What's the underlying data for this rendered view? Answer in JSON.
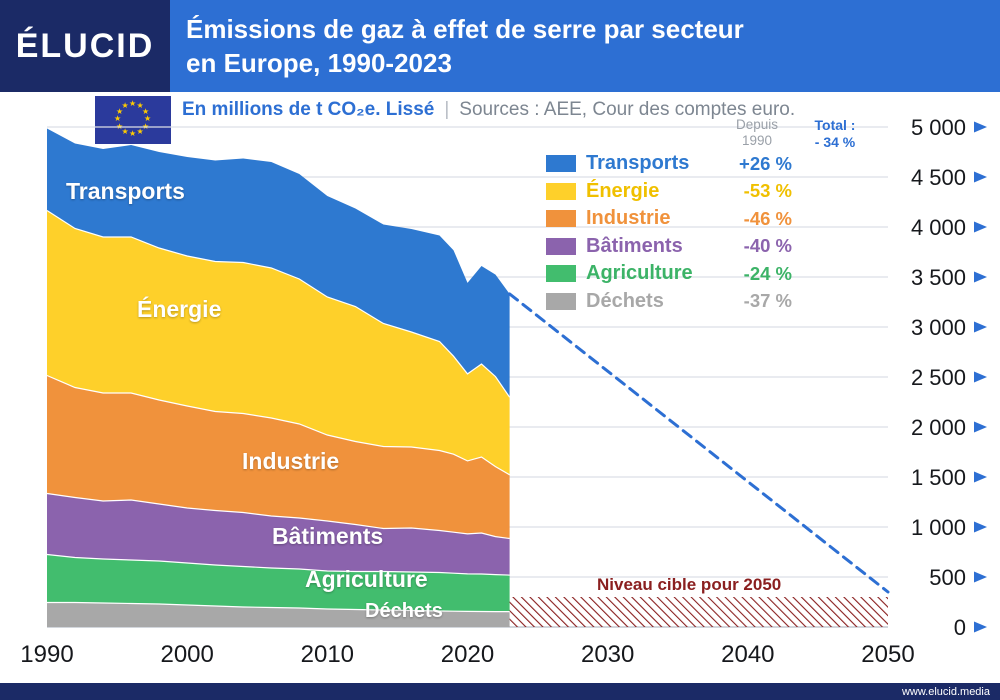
{
  "header": {
    "logo": "ÉLUCID",
    "title_line1": "Émissions de gaz à effet de serre par secteur",
    "title_line2": "en Europe, 1990-2023"
  },
  "subtitle": {
    "unit": "En millions de t CO₂e. Lissé",
    "separator": "|",
    "sources": "Sources : AEE, Cour des comptes euro."
  },
  "legend": {
    "since_line1": "Depuis",
    "since_line2": "1990",
    "total_line1": "Total :",
    "total_line2": "- 34 %"
  },
  "footer": {
    "url": "www.elucid.media"
  },
  "colors": {
    "header_navy": "#1b2a66",
    "header_blue": "#2d6fd3",
    "accent_blue": "#2d6fd3",
    "grid": "#dcdfe6",
    "axis_zero_line": "#b8bdc7",
    "axis_text": "#16181c",
    "target_red": "#8a1f1f",
    "flag_blue": "#2b3a9c",
    "flag_star_yellow": "#ffcc00"
  },
  "chart_data": {
    "type": "area",
    "stacked": true,
    "title": "Émissions de gaz à effet de serre par secteur en Europe, 1990-2023",
    "unit": "millions de t CO₂e",
    "xlim": [
      1990,
      2050
    ],
    "ylim": [
      0,
      5000
    ],
    "grid": true,
    "x": [
      1990,
      1992,
      1994,
      1996,
      1998,
      2000,
      2002,
      2004,
      2006,
      2008,
      2010,
      2012,
      2014,
      2016,
      2018,
      2019,
      2020,
      2021,
      2022,
      2023
    ],
    "series": [
      {
        "key": "transports",
        "name": "Transports",
        "change_label": "+26 %",
        "color": "#2e79d0",
        "label_color": "#2e79d0",
        "values": [
          820,
          850,
          880,
          920,
          960,
          990,
          1010,
          1040,
          1060,
          1050,
          1010,
          980,
          990,
          1030,
          1060,
          1060,
          910,
          980,
          1020,
          1033
        ]
      },
      {
        "key": "energie",
        "name": "Énergie",
        "change_label": "-53 %",
        "color": "#fed02a",
        "label_color": "#f0c000",
        "values": [
          1650,
          1590,
          1560,
          1560,
          1520,
          1500,
          1500,
          1510,
          1500,
          1450,
          1380,
          1350,
          1230,
          1150,
          1090,
          980,
          870,
          930,
          900,
          776
        ]
      },
      {
        "key": "industrie",
        "name": "Industrie",
        "change_label": "-46 %",
        "color": "#f0923c",
        "label_color": "#f0923c",
        "values": [
          1180,
          1100,
          1080,
          1070,
          1040,
          1020,
          990,
          990,
          980,
          940,
          860,
          830,
          820,
          810,
          800,
          780,
          730,
          760,
          700,
          637
        ]
      },
      {
        "key": "batiments",
        "name": "Bâtiments",
        "change_label": "-40 %",
        "color": "#8b63ad",
        "label_color": "#8b63ad",
        "values": [
          610,
          600,
          580,
          600,
          570,
          550,
          545,
          540,
          520,
          510,
          500,
          470,
          430,
          440,
          420,
          410,
          400,
          410,
          380,
          366
        ]
      },
      {
        "key": "agriculture",
        "name": "Agriculture",
        "change_label": "-24 %",
        "color": "#42bd6e",
        "label_color": "#3cb367",
        "values": [
          480,
          450,
          440,
          435,
          430,
          420,
          410,
          405,
          395,
          390,
          380,
          380,
          385,
          385,
          385,
          380,
          375,
          375,
          370,
          365
        ]
      },
      {
        "key": "dechets",
        "name": "Déchets",
        "change_label": "-37 %",
        "color": "#a8a8a8",
        "label_color": "#a8a8a8",
        "values": [
          245,
          245,
          240,
          235,
          230,
          220,
          210,
          200,
          195,
          190,
          180,
          175,
          170,
          165,
          160,
          158,
          156,
          155,
          154,
          154
        ]
      }
    ],
    "projection": {
      "x": [
        2023,
        2050
      ],
      "values": [
        3331,
        350
      ],
      "color": "#2d6fd3",
      "style": "dashed"
    },
    "target_zone": {
      "label": "Niveau cible pour 2050",
      "x_start": 2023,
      "x_end": 2050,
      "top_value": 300,
      "color": "#8a1f1f"
    },
    "y_ticks": [
      {
        "value": 0,
        "label": "0"
      },
      {
        "value": 500,
        "label": "500"
      },
      {
        "value": 1000,
        "label": "1 000"
      },
      {
        "value": 1500,
        "label": "1 500"
      },
      {
        "value": 2000,
        "label": "2 000"
      },
      {
        "value": 2500,
        "label": "2 500"
      },
      {
        "value": 3000,
        "label": "3 000"
      },
      {
        "value": 3500,
        "label": "3 500"
      },
      {
        "value": 4000,
        "label": "4 000"
      },
      {
        "value": 4500,
        "label": "4 500"
      },
      {
        "value": 5000,
        "label": "5 000"
      }
    ],
    "x_ticks": [
      {
        "value": 1990,
        "label": "1990"
      },
      {
        "value": 2000,
        "label": "2000"
      },
      {
        "value": 2010,
        "label": "2010"
      },
      {
        "value": 2020,
        "label": "2020"
      },
      {
        "value": 2030,
        "label": "2030"
      },
      {
        "value": 2040,
        "label": "2040"
      },
      {
        "value": 2050,
        "label": "2050"
      }
    ]
  }
}
